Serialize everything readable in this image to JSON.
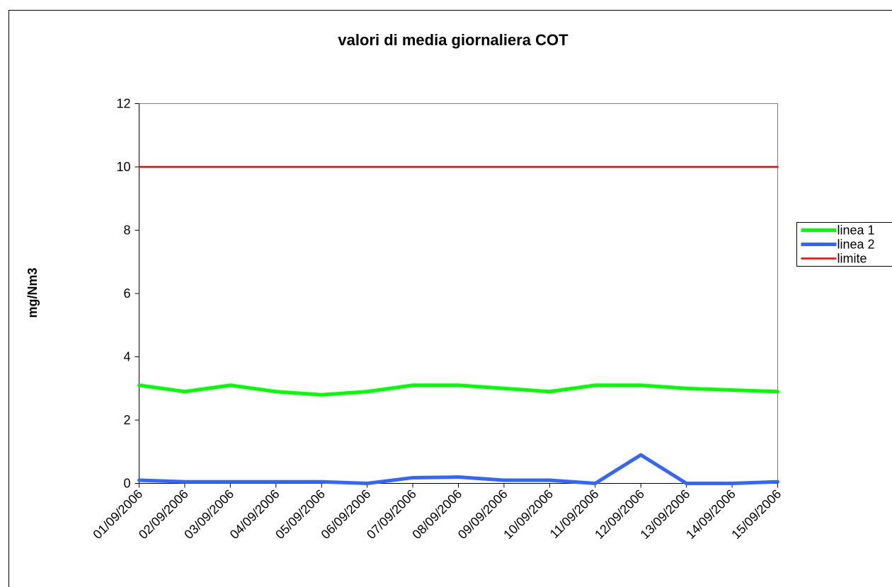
{
  "chart_data": {
    "type": "line",
    "title": "valori di media giornaliera  COT",
    "y_label": "mg/Nm3",
    "categories": [
      "01/09/2006",
      "02/09/2006",
      "03/09/2006",
      "04/09/2006",
      "05/09/2006",
      "06/09/2006",
      "07/09/2006",
      "08/09/2006",
      "09/09/2006",
      "10/09/2006",
      "11/09/2006",
      "12/09/2006",
      "13/09/2006",
      "14/09/2006",
      "15/09/2006"
    ],
    "series": [
      {
        "name": "linea 1",
        "color": "#00ff00",
        "values": [
          3.1,
          2.9,
          3.1,
          2.9,
          2.8,
          2.9,
          3.1,
          3.1,
          3.0,
          2.9,
          3.1,
          3.1,
          3.0,
          2.95,
          2.9
        ]
      },
      {
        "name": "linea 2",
        "color": "#3366ff",
        "values": [
          0.1,
          0.05,
          0.05,
          0.05,
          0.05,
          0,
          0.18,
          0.2,
          0.1,
          0.1,
          0,
          0.9,
          0,
          0,
          0.05
        ]
      },
      {
        "name": "limite",
        "color": "#ff0000",
        "values": [
          10,
          10,
          10,
          10,
          10,
          10,
          10,
          10,
          10,
          10,
          10,
          10,
          10,
          10,
          10
        ]
      }
    ],
    "ylim": [
      0,
      12
    ],
    "yticks": [
      0,
      2,
      4,
      6,
      8,
      10,
      12
    ],
    "legend": "right"
  }
}
